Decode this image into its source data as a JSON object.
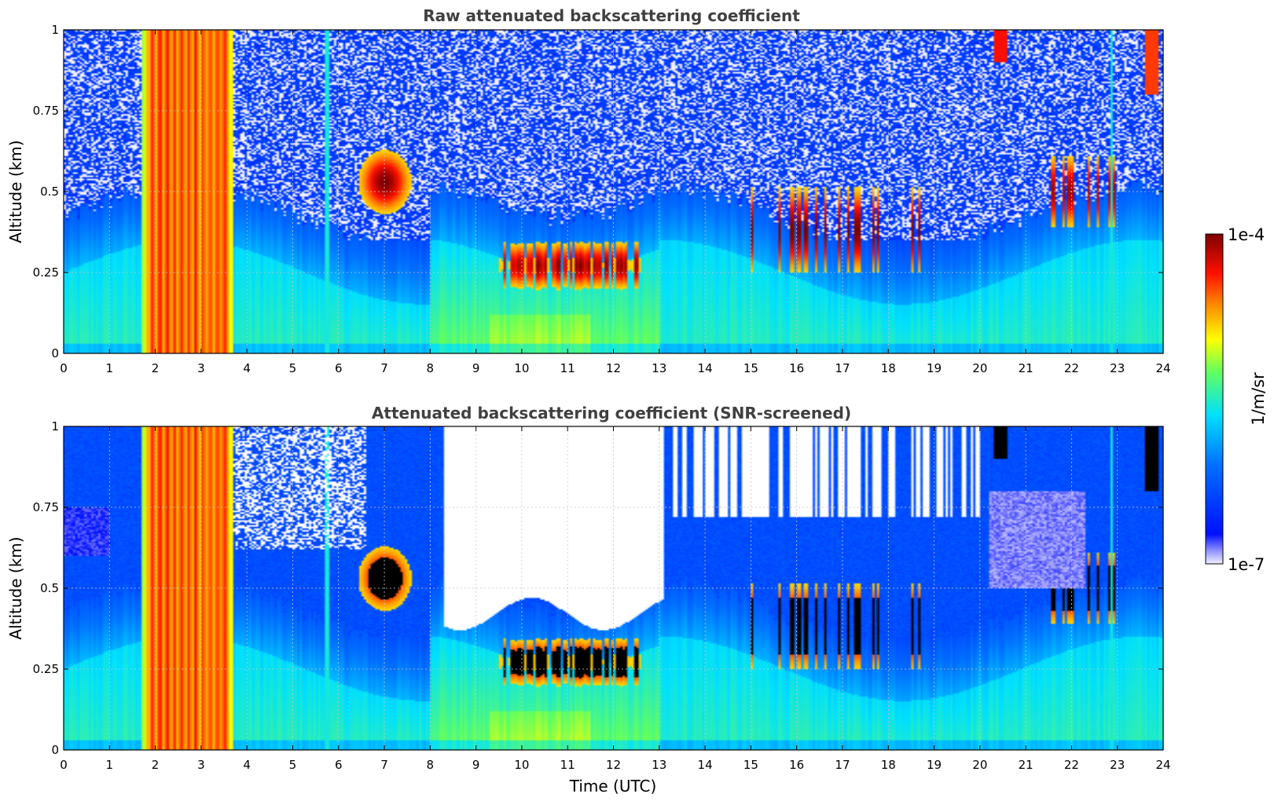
{
  "colors": {
    "low": "#f0f0ff",
    "blue": "#0010ff",
    "cyan": "#00e0ff",
    "green": "#60ff60",
    "yellow": "#ffff00",
    "orange": "#ff9000",
    "red": "#ff1000",
    "darkred": "#7f0000",
    "grid": "#c8c8c8",
    "title": "#404040"
  },
  "colorbar": {
    "max_label": "1e-4",
    "min_label": "1e-7",
    "unit_label": "1/m/sr",
    "scale": "log"
  },
  "chart_data": [
    {
      "type": "heatmap",
      "title": "Raw attenuated backscattering coefficient",
      "xlabel": "",
      "ylabel": "Altitude (km)",
      "xlim": [
        0,
        24
      ],
      "ylim": [
        0,
        1
      ],
      "x_ticks": [
        "0",
        "1",
        "2",
        "3",
        "4",
        "5",
        "6",
        "7",
        "8",
        "9",
        "10",
        "11",
        "12",
        "13",
        "14",
        "15",
        "16",
        "17",
        "18",
        "19",
        "20",
        "21",
        "22",
        "23",
        "24"
      ],
      "y_ticks": [
        "0",
        "0.25",
        "0.5",
        "0.75",
        "1"
      ],
      "y_tick_values": [
        0,
        0.25,
        0.5,
        0.75,
        1
      ],
      "grid": true,
      "screened": false,
      "colorbar_range": [
        1e-07,
        0.0001
      ],
      "features": [
        {
          "feature": "fog / low dense layer",
          "time": [
            1.7,
            3.7
          ],
          "altitude": [
            0,
            1
          ],
          "log10_value": -4.3
        },
        {
          "feature": "cloud",
          "time": [
            6.6,
            7.6
          ],
          "altitude": [
            0.45,
            0.65
          ],
          "log10_value": -4.0
        },
        {
          "feature": "cloud base layer",
          "time": [
            9.5,
            12.6
          ],
          "altitude": [
            0.2,
            0.35
          ],
          "log10_value": -4.1
        },
        {
          "feature": "scattered clouds",
          "time": [
            15.0,
            19.0
          ],
          "altitude": [
            0.25,
            0.55
          ],
          "log10_value": -4.2
        },
        {
          "feature": "scattered clouds",
          "time": [
            21.5,
            23.0
          ],
          "altitude": [
            0.4,
            0.6
          ],
          "log10_value": -4.2
        },
        {
          "feature": "boundary layer",
          "time": [
            4,
            24
          ],
          "altitude": [
            0,
            0.35
          ],
          "log10_value": -5.8
        }
      ]
    },
    {
      "type": "heatmap",
      "title": "Attenuated backscattering coefficient (SNR-screened)",
      "xlabel": "Time (UTC)",
      "ylabel": "Altitude (km)",
      "xlim": [
        0,
        24
      ],
      "ylim": [
        0,
        1
      ],
      "x_ticks": [
        "0",
        "1",
        "2",
        "3",
        "4",
        "5",
        "6",
        "7",
        "8",
        "9",
        "10",
        "11",
        "12",
        "13",
        "14",
        "15",
        "16",
        "17",
        "18",
        "19",
        "20",
        "21",
        "22",
        "23",
        "24"
      ],
      "y_ticks": [
        "0",
        "0.25",
        "0.5",
        "0.75",
        "1"
      ],
      "y_tick_values": [
        0,
        0.25,
        0.5,
        0.75,
        1
      ],
      "grid": true,
      "screened": true,
      "colorbar_range": [
        1e-07,
        0.0001
      ],
      "features": [
        {
          "feature": "fog / low dense layer",
          "time": [
            1.7,
            3.7
          ],
          "altitude": [
            0,
            1
          ],
          "log10_value": -4.3
        },
        {
          "feature": "cloud (saturated)",
          "time": [
            6.6,
            7.6
          ],
          "altitude": [
            0.43,
            0.65
          ],
          "log10_value": -3.5
        },
        {
          "feature": "cloud base layer (saturated)",
          "time": [
            9.5,
            12.6
          ],
          "altitude": [
            0.2,
            0.4
          ],
          "log10_value": -3.5
        },
        {
          "feature": "screened-out region",
          "time": [
            8.3,
            13.0
          ],
          "altitude": [
            0.45,
            1.0
          ],
          "log10_value": null
        },
        {
          "feature": "screened-out region",
          "time": [
            20.2,
            22.3
          ],
          "altitude": [
            0.5,
            0.8
          ],
          "log10_value": null
        }
      ]
    }
  ]
}
